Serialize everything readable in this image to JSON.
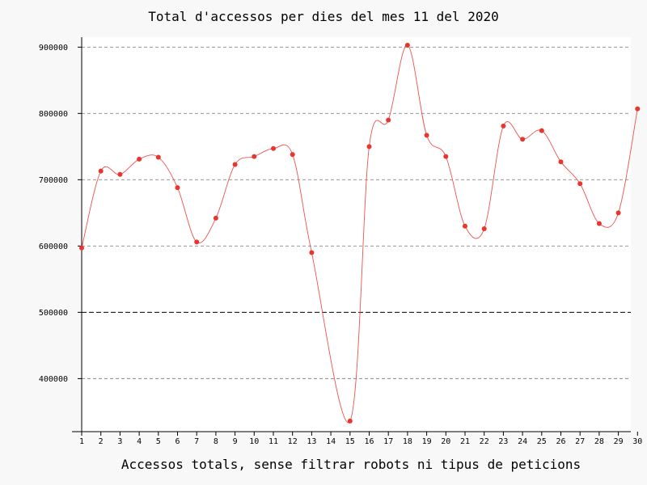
{
  "chart_data": {
    "type": "line",
    "title": "Total d'accessos per dies del mes 11 del 2020",
    "xlabel": "Accessos totals, sense filtrar robots ni tipus de peticions",
    "ylabel": "",
    "categories": [
      "1",
      "2",
      "3",
      "4",
      "5",
      "6",
      "7",
      "8",
      "9",
      "10",
      "11",
      "12",
      "13",
      "14",
      "15",
      "16",
      "17",
      "18",
      "19",
      "20",
      "21",
      "22",
      "23",
      "24",
      "25",
      "26",
      "27",
      "28",
      "29",
      "30"
    ],
    "series": [
      {
        "name": "",
        "values": [
          597000,
          713000,
          708000,
          731000,
          734000,
          688000,
          606000,
          642000,
          723000,
          735000,
          747000,
          738000,
          590000,
          336000,
          750000,
          790000,
          903000,
          767000,
          735000,
          630000,
          626000,
          781000,
          761000,
          774000,
          727000,
          694000,
          634000,
          650000,
          807000
        ]
      }
    ],
    "x_values": [
      1,
      2,
      3,
      4,
      5,
      6,
      7,
      8,
      9,
      10,
      11,
      12,
      13,
      15,
      16,
      17,
      18,
      19,
      20,
      21,
      22,
      23,
      24,
      25,
      26,
      27,
      28,
      29,
      30
    ],
    "ylim": [
      320000,
      915000
    ],
    "yticks": [
      400000,
      500000,
      600000,
      700000,
      800000,
      900000
    ],
    "grid": true,
    "reference_line": 500000,
    "colors": {
      "line": "#f05050",
      "marker": "#e8352e",
      "grid": "#888888",
      "reference": "#000000"
    }
  }
}
